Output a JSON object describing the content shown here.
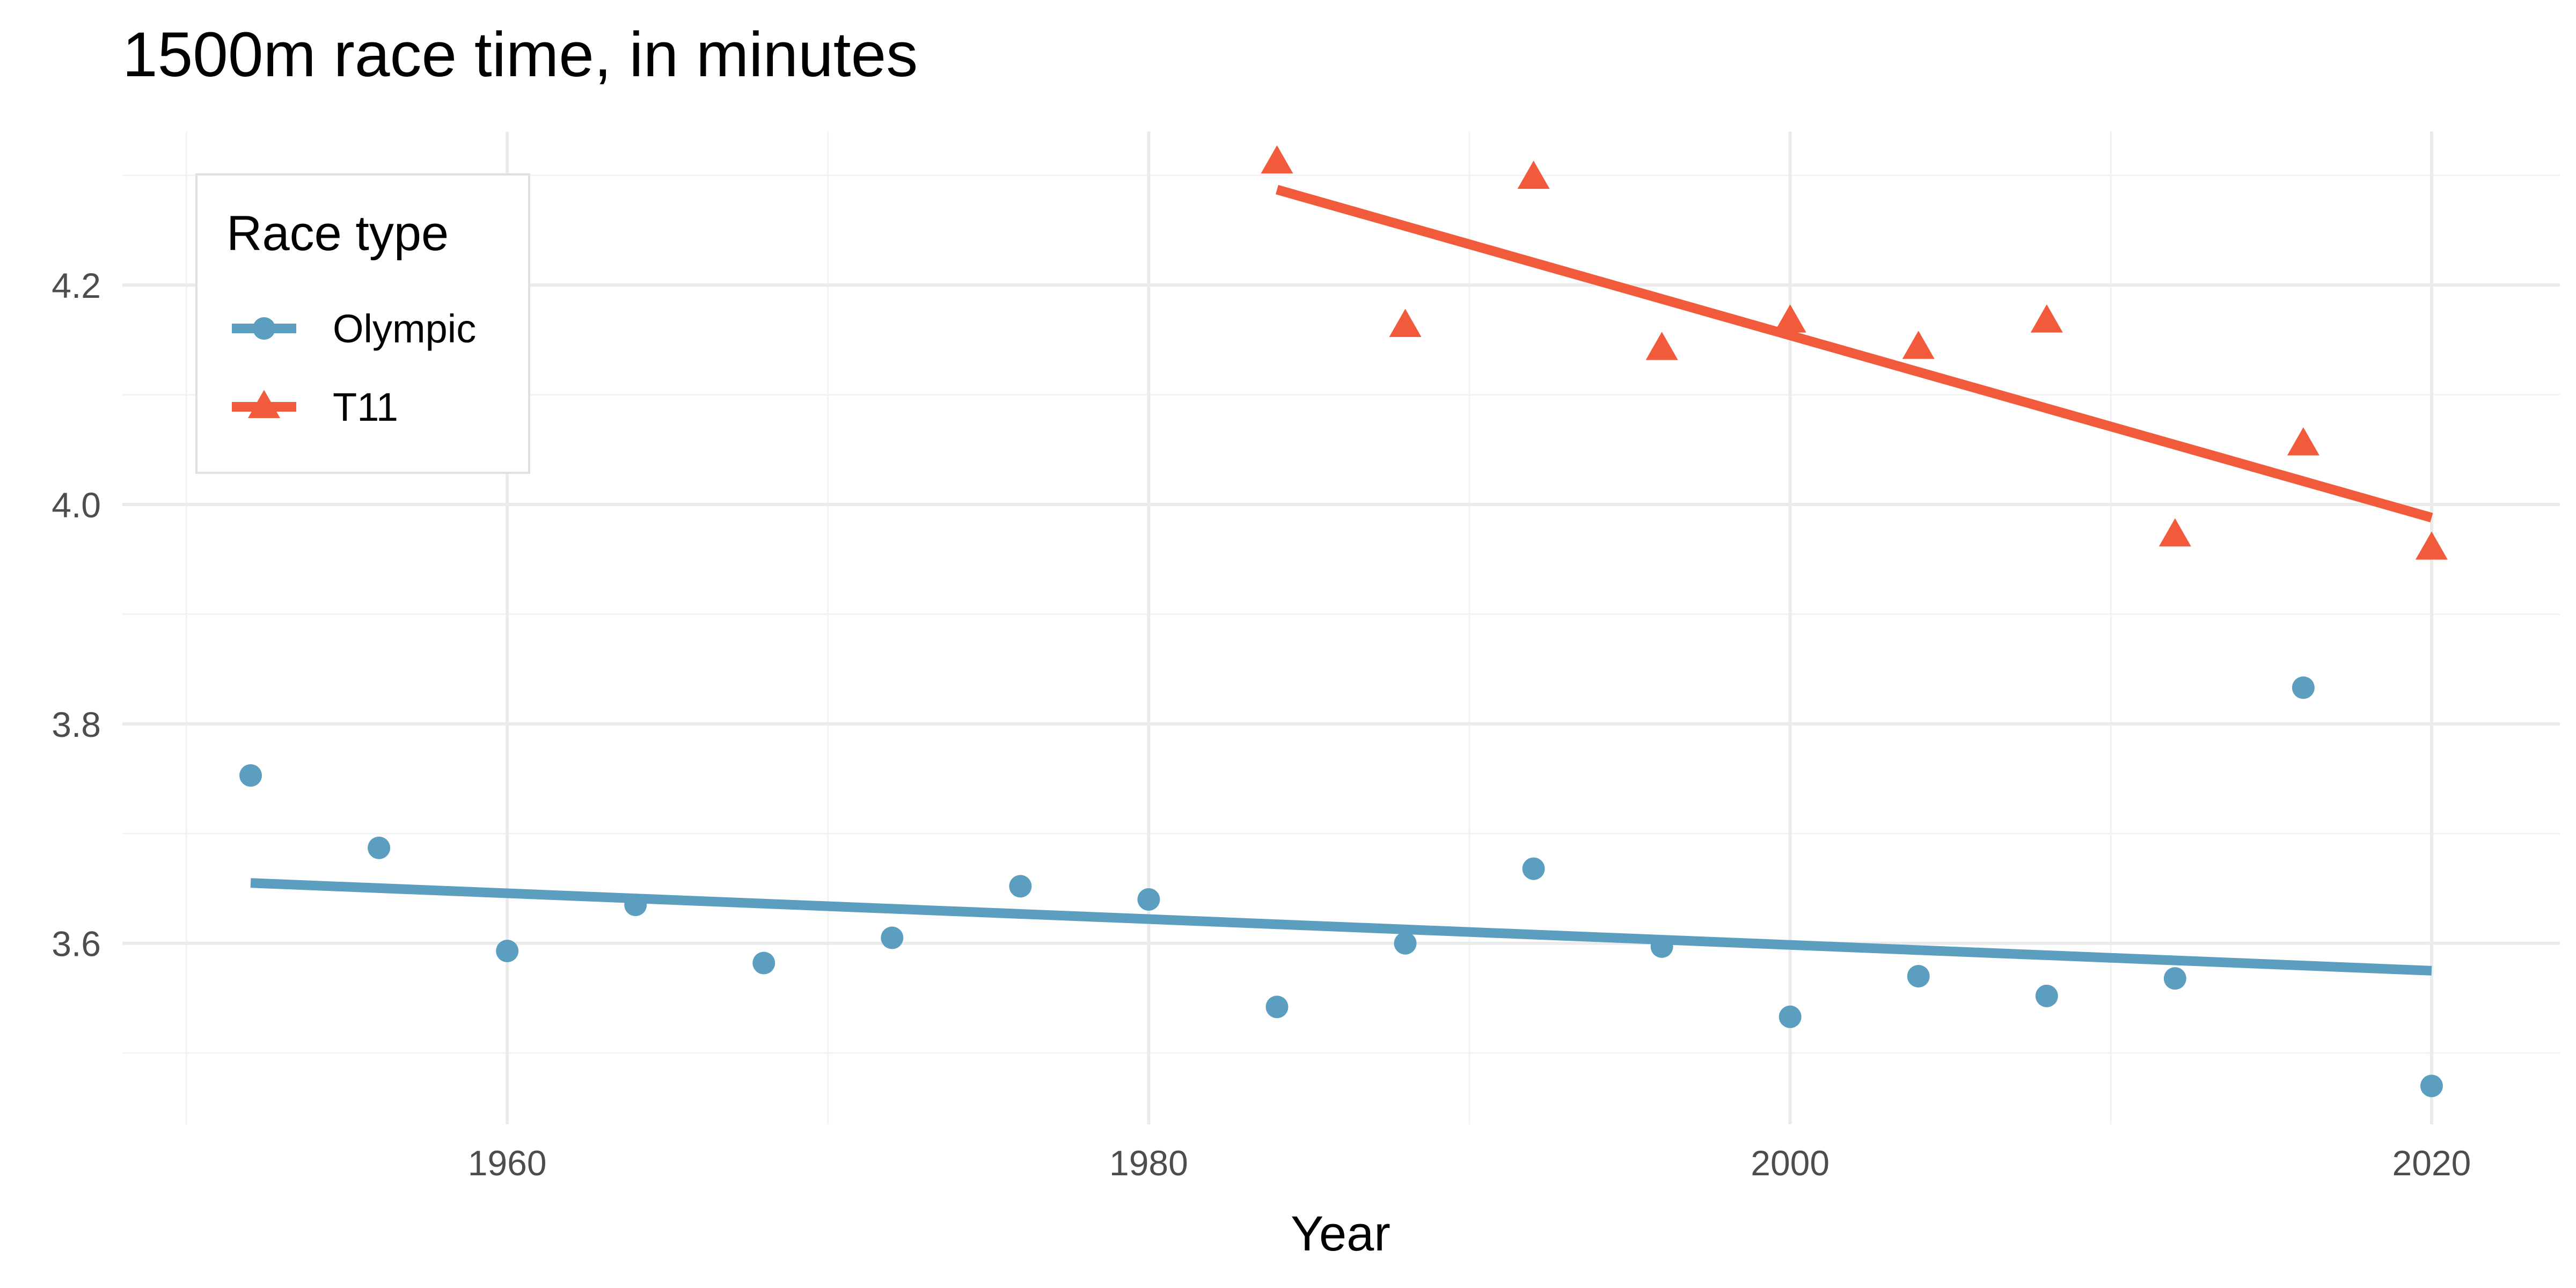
{
  "chart_data": {
    "type": "scatter",
    "title": "1500m race time, in minutes",
    "xlabel": "Year",
    "ylabel": "",
    "xlim": [
      1948,
      2024
    ],
    "ylim": [
      3.435,
      4.34
    ],
    "x_ticks": [
      1960,
      1980,
      2000,
      2020
    ],
    "y_ticks": [
      3.6,
      3.8,
      4.0,
      4.2
    ],
    "grid": true,
    "legend": {
      "title": "Race type",
      "position": "top-left"
    },
    "series": [
      {
        "name": "Olympic",
        "color": "#5b9ec0",
        "marker": "circle",
        "points": [
          [
            1952,
            3.753
          ],
          [
            1956,
            3.687
          ],
          [
            1960,
            3.593
          ],
          [
            1964,
            3.635
          ],
          [
            1968,
            3.582
          ],
          [
            1972,
            3.605
          ],
          [
            1976,
            3.652
          ],
          [
            1980,
            3.64
          ],
          [
            1984,
            3.542
          ],
          [
            1988,
            3.6
          ],
          [
            1992,
            3.668
          ],
          [
            1996,
            3.597
          ],
          [
            2000,
            3.533
          ],
          [
            2004,
            3.57
          ],
          [
            2008,
            3.552
          ],
          [
            2012,
            3.568
          ],
          [
            2016,
            3.833
          ],
          [
            2020,
            3.47
          ]
        ],
        "trend": [
          [
            1952,
            3.655
          ],
          [
            2020,
            3.575
          ]
        ]
      },
      {
        "name": "T11",
        "color": "#f15a3a",
        "marker": "triangle",
        "points": [
          [
            1984,
            4.312
          ],
          [
            1988,
            4.163
          ],
          [
            1992,
            4.298
          ],
          [
            1996,
            4.142
          ],
          [
            2000,
            4.167
          ],
          [
            2004,
            4.143
          ],
          [
            2008,
            4.167
          ],
          [
            2012,
            3.972
          ],
          [
            2016,
            4.055
          ],
          [
            2020,
            3.96
          ]
        ],
        "trend": [
          [
            1984,
            4.287
          ],
          [
            2020,
            3.988
          ]
        ]
      }
    ]
  }
}
